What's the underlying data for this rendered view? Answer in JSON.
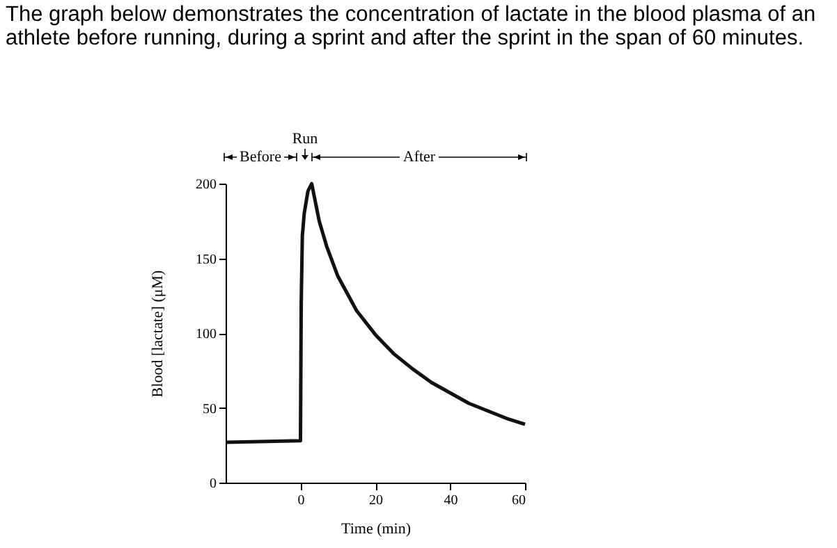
{
  "chart_data": {
    "type": "line",
    "title": "The graph below demonstrates the concentration of lactate in the blood plasma of an athlete before running, during a sprint and after the sprint in the span of 60 minutes.",
    "xlabel": "Time (min)",
    "ylabel": "Blood [lactate] (μM)",
    "x": [
      -20,
      0,
      0.2,
      0.5,
      1,
      2,
      3,
      5,
      7,
      10,
      15,
      20,
      25,
      30,
      35,
      40,
      45,
      50,
      55,
      60
    ],
    "series": [
      {
        "color": "#111111",
        "values": [
          27,
          28,
          120,
          165,
          180,
          195,
          200,
          175,
          158,
          138,
          115,
          99,
          86,
          76,
          67,
          60,
          53,
          48,
          43,
          39
        ]
      }
    ],
    "xlim": [
      -20,
      60
    ],
    "xticks": [
      0,
      20,
      40,
      60
    ],
    "ylim": [
      0,
      200
    ],
    "yticks": [
      0,
      50,
      100,
      150,
      200
    ],
    "grid": false,
    "annotations": [
      "Before",
      "Run",
      "After"
    ]
  }
}
